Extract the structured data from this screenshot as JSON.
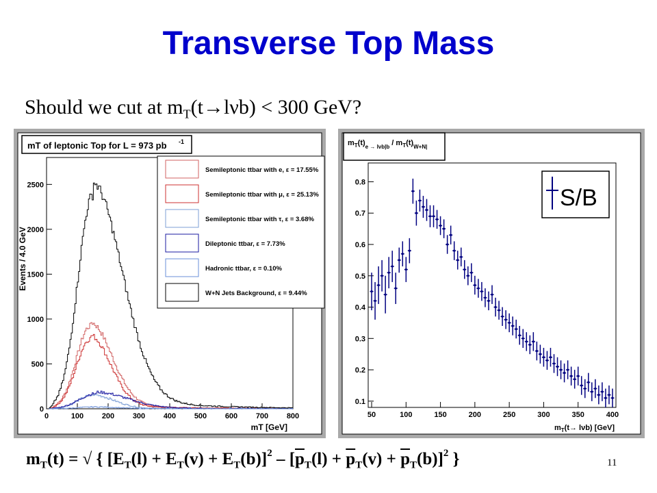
{
  "slide": {
    "title": "Transverse Top Mass",
    "subtitle_pre": "Should we cut at m",
    "subtitle_sub": "T",
    "subtitle_post": "(t→lνb) < 300 GeV?",
    "page_number": "11"
  },
  "formula": {
    "f1": "m",
    "f2": "T",
    "f3": "(t) = √ { [E",
    "f4": "T",
    "f5": "(l) + E",
    "f6": "T",
    "f7": "(v) + E",
    "f8": "T",
    "f9": "(b)]",
    "f10": "2",
    "f11": " – [",
    "f12": "p",
    "f13": "T",
    "f14": "(l) + ",
    "f15": "p",
    "f16": "T",
    "f17": "(v) + ",
    "f18": "p",
    "f19": "T",
    "f20": "(b)]",
    "f21": "2",
    "f22": " }"
  },
  "colors": {
    "title": "#0000cc",
    "panel_bg": "#a9a9a9",
    "semilep_e": "#d06060",
    "semilep_mu": "#cc3030",
    "semilep_tau": "#7e9fd6",
    "dilep": "#1818a0",
    "hadronic": "#6a8fd8",
    "wjets": "#000000",
    "sb_points": "#000080"
  },
  "chart_data": [
    {
      "type": "line",
      "title": "mT of leptonic Top for L = 973 pb",
      "title_sup": "-1",
      "xlabel": "mT [GeV]",
      "ylabel": "Events / 4.0 GeV",
      "xlim": [
        0,
        800
      ],
      "ylim": [
        0,
        2800
      ],
      "x_ticks": [
        "0",
        "100",
        "200",
        "300",
        "400",
        "500",
        "600",
        "700",
        "800"
      ],
      "y_ticks": [
        "0",
        "500",
        "1000",
        "1500",
        "2000",
        "2500"
      ],
      "legend_position": "top-right",
      "series": [
        {
          "name": "Semileptonic ttbar with e, ε = 17.55%",
          "peak_x": 140,
          "peak_y": 920,
          "width_left": 45,
          "width_right": 70,
          "tail": 0.05
        },
        {
          "name": "Semileptonic ttbar with μ, ε = 25.13%",
          "peak_x": 140,
          "peak_y": 780,
          "width_left": 45,
          "width_right": 65,
          "tail": 0.05
        },
        {
          "name": "Semileptonic ttbar with τ, ε = 3.68%",
          "peak_x": 145,
          "peak_y": 150,
          "width_left": 45,
          "width_right": 70,
          "tail": 0.05
        },
        {
          "name": "Dileptonic ttbar, ε = 7.73%",
          "peak_x": 160,
          "peak_y": 170,
          "width_left": 55,
          "width_right": 100,
          "tail": 0.1
        },
        {
          "name": "Hadronic ttbar, ε = 0.10%",
          "peak_x": 150,
          "peak_y": 20,
          "width_left": 50,
          "width_right": 80,
          "tail": 0.05
        },
        {
          "name": "W+N Jets Background, ε = 9.44%",
          "peak_x": 148,
          "peak_y": 2380,
          "width_left": 48,
          "width_right": 95,
          "tail": 0.06
        }
      ]
    },
    {
      "type": "scatter",
      "title": "m_T(t)_{e → lνb|b} / m_T(t)_{W+N|}",
      "xlabel": "m_T(t→ lνb) [GeV]",
      "ylabel": "",
      "xlim": [
        45,
        405
      ],
      "ylim": [
        0.08,
        0.86
      ],
      "x_ticks": [
        "50",
        "100",
        "150",
        "200",
        "250",
        "300",
        "350",
        "400"
      ],
      "y_ticks": [
        "0.1",
        "0.2",
        "0.3",
        "0.4",
        "0.5",
        "0.6",
        "0.7",
        "0.8"
      ],
      "legend": "S/B",
      "legend_position": "top-right",
      "x": [
        50,
        55,
        60,
        65,
        70,
        75,
        80,
        85,
        90,
        95,
        100,
        105,
        110,
        115,
        120,
        125,
        130,
        135,
        140,
        145,
        150,
        155,
        160,
        165,
        170,
        175,
        180,
        185,
        190,
        195,
        200,
        205,
        210,
        215,
        220,
        225,
        230,
        235,
        240,
        245,
        250,
        255,
        260,
        265,
        270,
        275,
        280,
        285,
        290,
        295,
        300,
        305,
        310,
        315,
        320,
        325,
        330,
        335,
        340,
        345,
        350,
        355,
        360,
        365,
        370,
        375,
        380,
        385,
        390,
        395,
        400
      ],
      "y": [
        0.45,
        0.42,
        0.47,
        0.5,
        0.44,
        0.51,
        0.53,
        0.46,
        0.55,
        0.57,
        0.52,
        0.58,
        0.77,
        0.7,
        0.74,
        0.72,
        0.71,
        0.69,
        0.69,
        0.68,
        0.66,
        0.65,
        0.6,
        0.63,
        0.58,
        0.55,
        0.56,
        0.52,
        0.5,
        0.51,
        0.47,
        0.46,
        0.45,
        0.43,
        0.42,
        0.44,
        0.4,
        0.39,
        0.37,
        0.36,
        0.35,
        0.34,
        0.33,
        0.31,
        0.3,
        0.29,
        0.28,
        0.29,
        0.26,
        0.25,
        0.24,
        0.23,
        0.24,
        0.22,
        0.21,
        0.2,
        0.19,
        0.2,
        0.18,
        0.17,
        0.18,
        0.15,
        0.14,
        0.16,
        0.13,
        0.14,
        0.12,
        0.13,
        0.11,
        0.12,
        0.11
      ],
      "yerr": [
        0.06,
        0.06,
        0.06,
        0.05,
        0.06,
        0.05,
        0.05,
        0.05,
        0.04,
        0.04,
        0.04,
        0.04,
        0.04,
        0.04,
        0.035,
        0.035,
        0.035,
        0.035,
        0.035,
        0.03,
        0.03,
        0.03,
        0.03,
        0.03,
        0.03,
        0.03,
        0.03,
        0.03,
        0.03,
        0.03,
        0.03,
        0.03,
        0.03,
        0.03,
        0.03,
        0.03,
        0.03,
        0.03,
        0.03,
        0.03,
        0.03,
        0.03,
        0.03,
        0.03,
        0.03,
        0.03,
        0.03,
        0.03,
        0.03,
        0.03,
        0.03,
        0.03,
        0.03,
        0.03,
        0.03,
        0.03,
        0.03,
        0.03,
        0.03,
        0.03,
        0.03,
        0.03,
        0.03,
        0.03,
        0.03,
        0.03,
        0.03,
        0.03,
        0.03,
        0.03,
        0.03
      ]
    }
  ]
}
